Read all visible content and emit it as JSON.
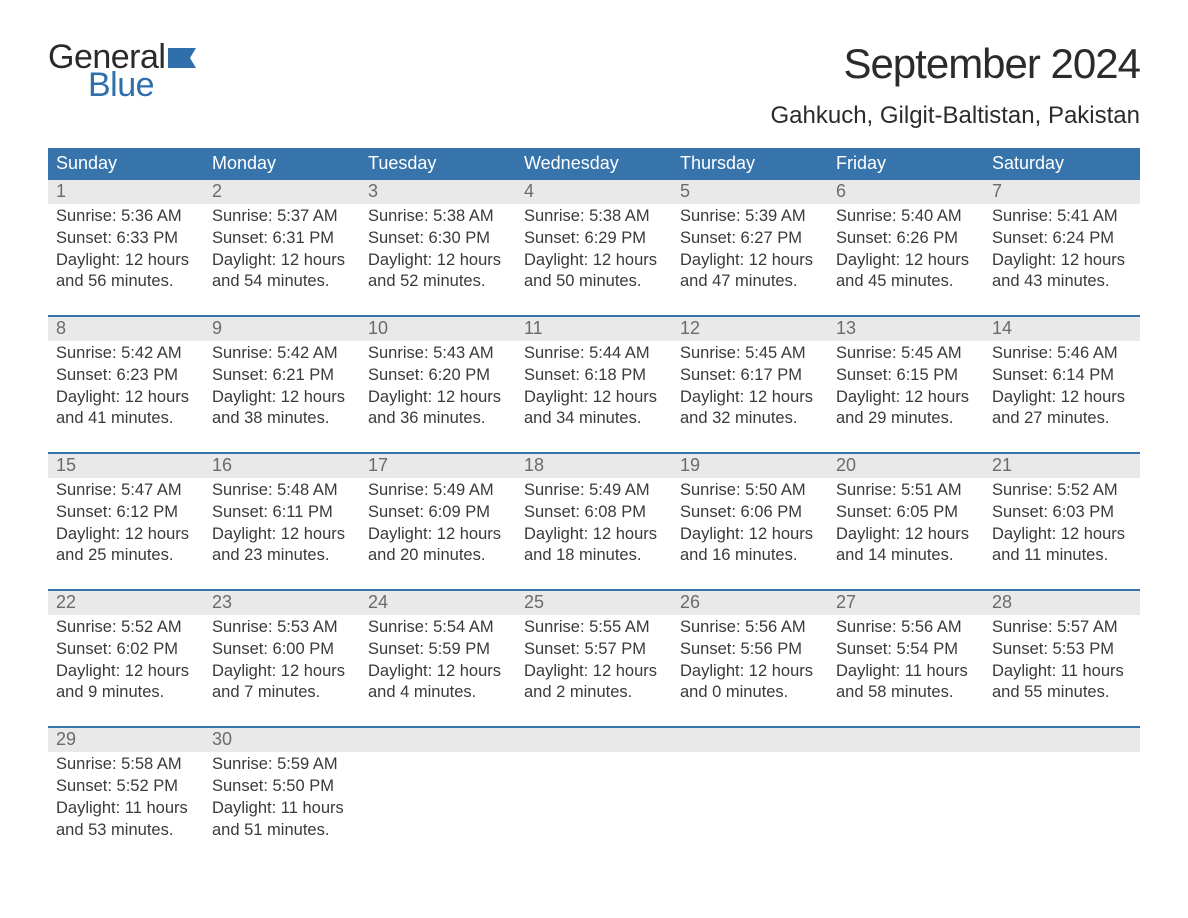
{
  "brand": {
    "word1": "General",
    "word2": "Blue",
    "flag_color": "#2f6fab"
  },
  "title": "September 2024",
  "location": "Gahkuch, Gilgit-Baltistan, Pakistan",
  "colors": {
    "header_bg": "#3874ac",
    "header_text": "#ffffff",
    "daynum_bg": "#e9e9e9",
    "daynum_text": "#6b6b6b",
    "body_text": "#3a3a3a",
    "rule": "#3874ac",
    "page_bg": "#ffffff"
  },
  "typography": {
    "title_fontsize": 42,
    "location_fontsize": 24,
    "weekday_fontsize": 18,
    "daynum_fontsize": 18,
    "cell_fontsize": 16.5
  },
  "weekdays": [
    "Sunday",
    "Monday",
    "Tuesday",
    "Wednesday",
    "Thursday",
    "Friday",
    "Saturday"
  ],
  "weeks": [
    [
      {
        "n": "1",
        "sunrise": "5:36 AM",
        "sunset": "6:33 PM",
        "dl1": "12 hours",
        "dl2": "and 56 minutes."
      },
      {
        "n": "2",
        "sunrise": "5:37 AM",
        "sunset": "6:31 PM",
        "dl1": "12 hours",
        "dl2": "and 54 minutes."
      },
      {
        "n": "3",
        "sunrise": "5:38 AM",
        "sunset": "6:30 PM",
        "dl1": "12 hours",
        "dl2": "and 52 minutes."
      },
      {
        "n": "4",
        "sunrise": "5:38 AM",
        "sunset": "6:29 PM",
        "dl1": "12 hours",
        "dl2": "and 50 minutes."
      },
      {
        "n": "5",
        "sunrise": "5:39 AM",
        "sunset": "6:27 PM",
        "dl1": "12 hours",
        "dl2": "and 47 minutes."
      },
      {
        "n": "6",
        "sunrise": "5:40 AM",
        "sunset": "6:26 PM",
        "dl1": "12 hours",
        "dl2": "and 45 minutes."
      },
      {
        "n": "7",
        "sunrise": "5:41 AM",
        "sunset": "6:24 PM",
        "dl1": "12 hours",
        "dl2": "and 43 minutes."
      }
    ],
    [
      {
        "n": "8",
        "sunrise": "5:42 AM",
        "sunset": "6:23 PM",
        "dl1": "12 hours",
        "dl2": "and 41 minutes."
      },
      {
        "n": "9",
        "sunrise": "5:42 AM",
        "sunset": "6:21 PM",
        "dl1": "12 hours",
        "dl2": "and 38 minutes."
      },
      {
        "n": "10",
        "sunrise": "5:43 AM",
        "sunset": "6:20 PM",
        "dl1": "12 hours",
        "dl2": "and 36 minutes."
      },
      {
        "n": "11",
        "sunrise": "5:44 AM",
        "sunset": "6:18 PM",
        "dl1": "12 hours",
        "dl2": "and 34 minutes."
      },
      {
        "n": "12",
        "sunrise": "5:45 AM",
        "sunset": "6:17 PM",
        "dl1": "12 hours",
        "dl2": "and 32 minutes."
      },
      {
        "n": "13",
        "sunrise": "5:45 AM",
        "sunset": "6:15 PM",
        "dl1": "12 hours",
        "dl2": "and 29 minutes."
      },
      {
        "n": "14",
        "sunrise": "5:46 AM",
        "sunset": "6:14 PM",
        "dl1": "12 hours",
        "dl2": "and 27 minutes."
      }
    ],
    [
      {
        "n": "15",
        "sunrise": "5:47 AM",
        "sunset": "6:12 PM",
        "dl1": "12 hours",
        "dl2": "and 25 minutes."
      },
      {
        "n": "16",
        "sunrise": "5:48 AM",
        "sunset": "6:11 PM",
        "dl1": "12 hours",
        "dl2": "and 23 minutes."
      },
      {
        "n": "17",
        "sunrise": "5:49 AM",
        "sunset": "6:09 PM",
        "dl1": "12 hours",
        "dl2": "and 20 minutes."
      },
      {
        "n": "18",
        "sunrise": "5:49 AM",
        "sunset": "6:08 PM",
        "dl1": "12 hours",
        "dl2": "and 18 minutes."
      },
      {
        "n": "19",
        "sunrise": "5:50 AM",
        "sunset": "6:06 PM",
        "dl1": "12 hours",
        "dl2": "and 16 minutes."
      },
      {
        "n": "20",
        "sunrise": "5:51 AM",
        "sunset": "6:05 PM",
        "dl1": "12 hours",
        "dl2": "and 14 minutes."
      },
      {
        "n": "21",
        "sunrise": "5:52 AM",
        "sunset": "6:03 PM",
        "dl1": "12 hours",
        "dl2": "and 11 minutes."
      }
    ],
    [
      {
        "n": "22",
        "sunrise": "5:52 AM",
        "sunset": "6:02 PM",
        "dl1": "12 hours",
        "dl2": "and 9 minutes."
      },
      {
        "n": "23",
        "sunrise": "5:53 AM",
        "sunset": "6:00 PM",
        "dl1": "12 hours",
        "dl2": "and 7 minutes."
      },
      {
        "n": "24",
        "sunrise": "5:54 AM",
        "sunset": "5:59 PM",
        "dl1": "12 hours",
        "dl2": "and 4 minutes."
      },
      {
        "n": "25",
        "sunrise": "5:55 AM",
        "sunset": "5:57 PM",
        "dl1": "12 hours",
        "dl2": "and 2 minutes."
      },
      {
        "n": "26",
        "sunrise": "5:56 AM",
        "sunset": "5:56 PM",
        "dl1": "12 hours",
        "dl2": "and 0 minutes."
      },
      {
        "n": "27",
        "sunrise": "5:56 AM",
        "sunset": "5:54 PM",
        "dl1": "11 hours",
        "dl2": "and 58 minutes."
      },
      {
        "n": "28",
        "sunrise": "5:57 AM",
        "sunset": "5:53 PM",
        "dl1": "11 hours",
        "dl2": "and 55 minutes."
      }
    ],
    [
      {
        "n": "29",
        "sunrise": "5:58 AM",
        "sunset": "5:52 PM",
        "dl1": "11 hours",
        "dl2": "and 53 minutes."
      },
      {
        "n": "30",
        "sunrise": "5:59 AM",
        "sunset": "5:50 PM",
        "dl1": "11 hours",
        "dl2": "and 51 minutes."
      },
      null,
      null,
      null,
      null,
      null
    ]
  ],
  "labels": {
    "sunrise": "Sunrise: ",
    "sunset": "Sunset: ",
    "daylight": "Daylight: "
  }
}
